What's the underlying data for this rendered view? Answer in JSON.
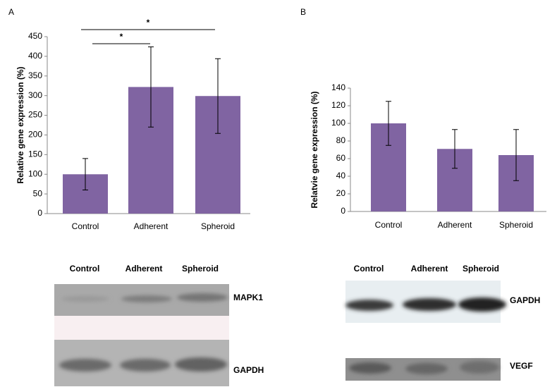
{
  "chart_data": [
    {
      "type": "bar",
      "y_label": "Relative gene expression (%)",
      "categories": [
        "Control",
        "Adherent",
        "Spheroid"
      ],
      "values": [
        100,
        322,
        299
      ],
      "errors": [
        40,
        102,
        95
      ],
      "color": "#8064a2",
      "ylim": [
        0,
        450
      ],
      "yticks": [
        0,
        50,
        100,
        150,
        200,
        250,
        300,
        350,
        400,
        450
      ],
      "annotations": [
        "*",
        "*"
      ]
    },
    {
      "type": "bar",
      "y_label": "Relatvie gene expression (%)",
      "categories": [
        "Control",
        "Adherent",
        "Spheroid"
      ],
      "values": [
        100,
        71,
        64
      ],
      "errors": [
        25,
        22,
        29
      ],
      "color": "#8064a2",
      "ylim": [
        0,
        140
      ],
      "yticks": [
        0,
        20,
        40,
        60,
        80,
        100,
        120,
        140
      ]
    }
  ],
  "panels": [
    {
      "label": "A",
      "blot_columns": [
        "Control",
        "Adherent",
        "Spheroid"
      ],
      "blot_rows": [
        "MAPK1",
        "GAPDH"
      ]
    },
    {
      "label": "B",
      "blot_columns": [
        "Control",
        "Adherent",
        "Spheroid"
      ],
      "blot_rows": [
        "GAPDH",
        "VEGF"
      ]
    }
  ]
}
